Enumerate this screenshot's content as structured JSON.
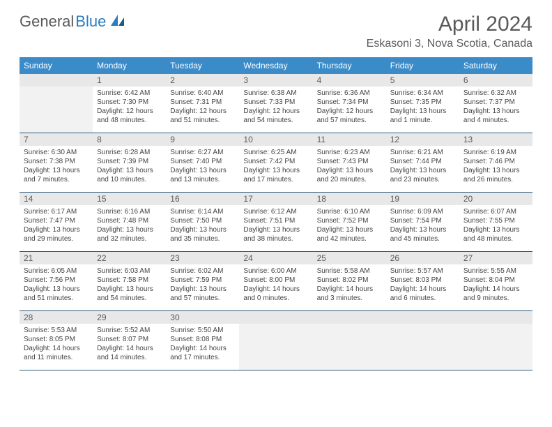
{
  "logo": {
    "text1": "General",
    "text2": "Blue"
  },
  "title": "April 2024",
  "subtitle": "Eskasoni 3, Nova Scotia, Canada",
  "colors": {
    "header_bg": "#3b8bc9",
    "header_text": "#ffffff",
    "daynum_bg": "#e8e8e8",
    "rule": "#2d5a7a",
    "text": "#444444",
    "logo_gray": "#5a5a5a",
    "logo_blue": "#2d7dc0"
  },
  "weekdays": [
    "Sunday",
    "Monday",
    "Tuesday",
    "Wednesday",
    "Thursday",
    "Friday",
    "Saturday"
  ],
  "weeks": [
    [
      null,
      {
        "n": "1",
        "sr": "Sunrise: 6:42 AM",
        "ss": "Sunset: 7:30 PM",
        "dl": "Daylight: 12 hours and 48 minutes."
      },
      {
        "n": "2",
        "sr": "Sunrise: 6:40 AM",
        "ss": "Sunset: 7:31 PM",
        "dl": "Daylight: 12 hours and 51 minutes."
      },
      {
        "n": "3",
        "sr": "Sunrise: 6:38 AM",
        "ss": "Sunset: 7:33 PM",
        "dl": "Daylight: 12 hours and 54 minutes."
      },
      {
        "n": "4",
        "sr": "Sunrise: 6:36 AM",
        "ss": "Sunset: 7:34 PM",
        "dl": "Daylight: 12 hours and 57 minutes."
      },
      {
        "n": "5",
        "sr": "Sunrise: 6:34 AM",
        "ss": "Sunset: 7:35 PM",
        "dl": "Daylight: 13 hours and 1 minute."
      },
      {
        "n": "6",
        "sr": "Sunrise: 6:32 AM",
        "ss": "Sunset: 7:37 PM",
        "dl": "Daylight: 13 hours and 4 minutes."
      }
    ],
    [
      {
        "n": "7",
        "sr": "Sunrise: 6:30 AM",
        "ss": "Sunset: 7:38 PM",
        "dl": "Daylight: 13 hours and 7 minutes."
      },
      {
        "n": "8",
        "sr": "Sunrise: 6:28 AM",
        "ss": "Sunset: 7:39 PM",
        "dl": "Daylight: 13 hours and 10 minutes."
      },
      {
        "n": "9",
        "sr": "Sunrise: 6:27 AM",
        "ss": "Sunset: 7:40 PM",
        "dl": "Daylight: 13 hours and 13 minutes."
      },
      {
        "n": "10",
        "sr": "Sunrise: 6:25 AM",
        "ss": "Sunset: 7:42 PM",
        "dl": "Daylight: 13 hours and 17 minutes."
      },
      {
        "n": "11",
        "sr": "Sunrise: 6:23 AM",
        "ss": "Sunset: 7:43 PM",
        "dl": "Daylight: 13 hours and 20 minutes."
      },
      {
        "n": "12",
        "sr": "Sunrise: 6:21 AM",
        "ss": "Sunset: 7:44 PM",
        "dl": "Daylight: 13 hours and 23 minutes."
      },
      {
        "n": "13",
        "sr": "Sunrise: 6:19 AM",
        "ss": "Sunset: 7:46 PM",
        "dl": "Daylight: 13 hours and 26 minutes."
      }
    ],
    [
      {
        "n": "14",
        "sr": "Sunrise: 6:17 AM",
        "ss": "Sunset: 7:47 PM",
        "dl": "Daylight: 13 hours and 29 minutes."
      },
      {
        "n": "15",
        "sr": "Sunrise: 6:16 AM",
        "ss": "Sunset: 7:48 PM",
        "dl": "Daylight: 13 hours and 32 minutes."
      },
      {
        "n": "16",
        "sr": "Sunrise: 6:14 AM",
        "ss": "Sunset: 7:50 PM",
        "dl": "Daylight: 13 hours and 35 minutes."
      },
      {
        "n": "17",
        "sr": "Sunrise: 6:12 AM",
        "ss": "Sunset: 7:51 PM",
        "dl": "Daylight: 13 hours and 38 minutes."
      },
      {
        "n": "18",
        "sr": "Sunrise: 6:10 AM",
        "ss": "Sunset: 7:52 PM",
        "dl": "Daylight: 13 hours and 42 minutes."
      },
      {
        "n": "19",
        "sr": "Sunrise: 6:09 AM",
        "ss": "Sunset: 7:54 PM",
        "dl": "Daylight: 13 hours and 45 minutes."
      },
      {
        "n": "20",
        "sr": "Sunrise: 6:07 AM",
        "ss": "Sunset: 7:55 PM",
        "dl": "Daylight: 13 hours and 48 minutes."
      }
    ],
    [
      {
        "n": "21",
        "sr": "Sunrise: 6:05 AM",
        "ss": "Sunset: 7:56 PM",
        "dl": "Daylight: 13 hours and 51 minutes."
      },
      {
        "n": "22",
        "sr": "Sunrise: 6:03 AM",
        "ss": "Sunset: 7:58 PM",
        "dl": "Daylight: 13 hours and 54 minutes."
      },
      {
        "n": "23",
        "sr": "Sunrise: 6:02 AM",
        "ss": "Sunset: 7:59 PM",
        "dl": "Daylight: 13 hours and 57 minutes."
      },
      {
        "n": "24",
        "sr": "Sunrise: 6:00 AM",
        "ss": "Sunset: 8:00 PM",
        "dl": "Daylight: 14 hours and 0 minutes."
      },
      {
        "n": "25",
        "sr": "Sunrise: 5:58 AM",
        "ss": "Sunset: 8:02 PM",
        "dl": "Daylight: 14 hours and 3 minutes."
      },
      {
        "n": "26",
        "sr": "Sunrise: 5:57 AM",
        "ss": "Sunset: 8:03 PM",
        "dl": "Daylight: 14 hours and 6 minutes."
      },
      {
        "n": "27",
        "sr": "Sunrise: 5:55 AM",
        "ss": "Sunset: 8:04 PM",
        "dl": "Daylight: 14 hours and 9 minutes."
      }
    ],
    [
      {
        "n": "28",
        "sr": "Sunrise: 5:53 AM",
        "ss": "Sunset: 8:05 PM",
        "dl": "Daylight: 14 hours and 11 minutes."
      },
      {
        "n": "29",
        "sr": "Sunrise: 5:52 AM",
        "ss": "Sunset: 8:07 PM",
        "dl": "Daylight: 14 hours and 14 minutes."
      },
      {
        "n": "30",
        "sr": "Sunrise: 5:50 AM",
        "ss": "Sunset: 8:08 PM",
        "dl": "Daylight: 14 hours and 17 minutes."
      },
      null,
      null,
      null,
      null
    ]
  ]
}
